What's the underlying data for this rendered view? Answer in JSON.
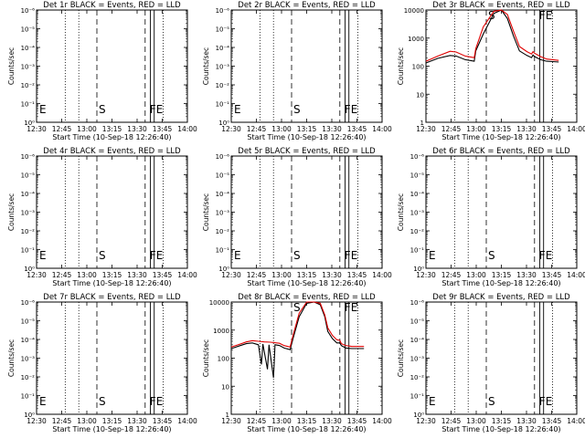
{
  "chart_data": [
    {
      "type": "line",
      "title": "Det 1r BLACK = Events, RED = LLD",
      "xlabel": "Start Time (10-Sep-18 12:26:40)",
      "ylabel": "Counts/sec",
      "yscale": "log",
      "ytick_labels": [
        "10⁰",
        "10⁻¹",
        "10⁻²",
        "10⁻³",
        "10⁻⁴",
        "10⁻⁵",
        "10⁻⁶"
      ],
      "xtick_labels": [
        "12:30",
        "12:45",
        "13:00",
        "13:15",
        "13:30",
        "13:45",
        "14:00"
      ],
      "markers": {
        "left": "E",
        "start": "S",
        "f": "F",
        "e": "E"
      },
      "series": []
    },
    {
      "type": "line",
      "title": "Det 2r BLACK = Events, RED = LLD",
      "xlabel": "Start Time (10-Sep-18 12:26:40)",
      "ylabel": "Counts/sec",
      "yscale": "log",
      "ytick_labels": [
        "10⁰",
        "10⁻¹",
        "10⁻²",
        "10⁻³",
        "10⁻⁴",
        "10⁻⁵",
        "10⁻⁶"
      ],
      "xtick_labels": [
        "12:30",
        "12:45",
        "13:00",
        "13:15",
        "13:30",
        "13:45",
        "14:00"
      ],
      "markers": {
        "left": "E",
        "start": "S",
        "f": "F",
        "e": "E"
      },
      "series": []
    },
    {
      "type": "line",
      "title": "Det 3r BLACK = Events, RED = LLD",
      "xlabel": "Start Time (10-Sep-18 12:26:40)",
      "ylabel": "Counts/sec",
      "yscale": "log",
      "ytick_labels": [
        "1",
        "10",
        "100",
        "1000",
        "10000"
      ],
      "xtick_labels": [
        "12:30",
        "12:45",
        "13:00",
        "13:15",
        "13:30",
        "13:45",
        "14:00"
      ],
      "markers": {
        "left": "",
        "start": "S",
        "f": "F",
        "e": "E"
      },
      "series": [
        {
          "color": "#000000",
          "points": [
            [
              0,
              130
            ],
            [
              8,
              190
            ],
            [
              16,
              240
            ],
            [
              20,
              230
            ],
            [
              26,
              170
            ],
            [
              32,
              150
            ],
            [
              33,
              350
            ],
            [
              38,
              1400
            ],
            [
              45,
              7500
            ],
            [
              50,
              10000
            ],
            [
              54,
              5000
            ],
            [
              58,
              1200
            ],
            [
              62,
              350
            ],
            [
              67,
              240
            ],
            [
              70,
              200
            ],
            [
              71,
              250
            ],
            [
              72,
              220
            ],
            [
              76,
              170
            ],
            [
              80,
              150
            ],
            [
              84,
              145
            ],
            [
              88,
              140
            ]
          ]
        },
        {
          "color": "#e00000",
          "points": [
            [
              0,
              150
            ],
            [
              8,
              230
            ],
            [
              16,
              340
            ],
            [
              20,
              320
            ],
            [
              26,
              230
            ],
            [
              32,
              200
            ],
            [
              33,
              420
            ],
            [
              38,
              2500
            ],
            [
              45,
              9000
            ],
            [
              50,
              12000
            ],
            [
              54,
              7000
            ],
            [
              58,
              1800
            ],
            [
              62,
              500
            ],
            [
              67,
              330
            ],
            [
              70,
              270
            ],
            [
              71,
              330
            ],
            [
              72,
              290
            ],
            [
              76,
              220
            ],
            [
              80,
              180
            ],
            [
              84,
              170
            ],
            [
              88,
              160
            ]
          ]
        }
      ]
    },
    {
      "type": "line",
      "title": "Det 4r BLACK = Events, RED = LLD",
      "xlabel": "Start Time (10-Sep-18 12:26:40)",
      "ylabel": "Counts/sec",
      "yscale": "log",
      "ytick_labels": [
        "10⁰",
        "10⁻¹",
        "10⁻²",
        "10⁻³",
        "10⁻⁴",
        "10⁻⁵",
        "10⁻⁶"
      ],
      "xtick_labels": [
        "12:30",
        "12:45",
        "13:00",
        "13:15",
        "13:30",
        "13:45",
        "14:00"
      ],
      "markers": {
        "left": "E",
        "start": "S",
        "f": "F",
        "e": "E"
      },
      "series": []
    },
    {
      "type": "line",
      "title": "Det 5r BLACK = Events, RED = LLD",
      "xlabel": "Start Time (10-Sep-18 12:26:40)",
      "ylabel": "Counts/sec",
      "yscale": "log",
      "ytick_labels": [
        "10⁰",
        "10⁻¹",
        "10⁻²",
        "10⁻³",
        "10⁻⁴",
        "10⁻⁵",
        "10⁻⁶"
      ],
      "xtick_labels": [
        "12:30",
        "12:45",
        "13:00",
        "13:15",
        "13:30",
        "13:45",
        "14:00"
      ],
      "markers": {
        "left": "E",
        "start": "S",
        "f": "F",
        "e": "E"
      },
      "series": []
    },
    {
      "type": "line",
      "title": "Det 6r BLACK = Events, RED = LLD",
      "xlabel": "Start Time (10-Sep-18 12:26:40)",
      "ylabel": "Counts/sec",
      "yscale": "log",
      "ytick_labels": [
        "10⁰",
        "10⁻¹",
        "10⁻²",
        "10⁻³",
        "10⁻⁴",
        "10⁻⁵",
        "10⁻⁶"
      ],
      "xtick_labels": [
        "12:30",
        "12:45",
        "13:00",
        "13:15",
        "13:30",
        "13:45",
        "14:00"
      ],
      "markers": {
        "left": "E",
        "start": "S",
        "f": "F",
        "e": "E"
      },
      "series": []
    },
    {
      "type": "line",
      "title": "Det 7r BLACK = Events, RED = LLD",
      "xlabel": "Start Time (10-Sep-18 12:26:40)",
      "ylabel": "Counts/sec",
      "yscale": "log",
      "ytick_labels": [
        "10⁰",
        "10⁻¹",
        "10⁻²",
        "10⁻³",
        "10⁻⁴",
        "10⁻⁵",
        "10⁻⁶"
      ],
      "xtick_labels": [
        "12:30",
        "12:45",
        "13:00",
        "13:15",
        "13:30",
        "13:45",
        "14:00"
      ],
      "markers": {
        "left": "E",
        "start": "S",
        "f": "F",
        "e": "E"
      },
      "series": []
    },
    {
      "type": "line",
      "title": "Det 8r BLACK = Events, RED = LLD",
      "xlabel": "Start Time (10-Sep-18 12:26:40)",
      "ylabel": "Counts/sec",
      "yscale": "log",
      "ytick_labels": [
        "1",
        "10",
        "100",
        "1000",
        "10000"
      ],
      "xtick_labels": [
        "12:30",
        "12:45",
        "13:00",
        "13:15",
        "13:30",
        "13:45",
        "14:00"
      ],
      "markers": {
        "left": "",
        "start": "S",
        "f": "F",
        "e": "E"
      },
      "series": [
        {
          "color": "#000000",
          "points": [
            [
              0,
              220
            ],
            [
              6,
              280
            ],
            [
              10,
              330
            ],
            [
              14,
              350
            ],
            [
              18,
              300
            ],
            [
              20,
              60
            ],
            [
              21,
              320
            ],
            [
              24,
              40
            ],
            [
              25,
              300
            ],
            [
              28,
              20
            ],
            [
              29,
              300
            ],
            [
              32,
              280
            ],
            [
              35,
              230
            ],
            [
              39,
              200
            ],
            [
              41,
              500
            ],
            [
              45,
              3000
            ],
            [
              50,
              9000
            ],
            [
              55,
              10000
            ],
            [
              59,
              8000
            ],
            [
              62,
              3000
            ],
            [
              64,
              900
            ],
            [
              67,
              500
            ],
            [
              70,
              350
            ],
            [
              72,
              350
            ],
            [
              73,
              280
            ],
            [
              76,
              230
            ],
            [
              80,
              220
            ],
            [
              88,
              220
            ]
          ]
        },
        {
          "color": "#e00000",
          "points": [
            [
              0,
              250
            ],
            [
              6,
              320
            ],
            [
              10,
              380
            ],
            [
              14,
              420
            ],
            [
              18,
              400
            ],
            [
              22,
              380
            ],
            [
              26,
              370
            ],
            [
              32,
              340
            ],
            [
              35,
              280
            ],
            [
              39,
              250
            ],
            [
              41,
              650
            ],
            [
              45,
              4000
            ],
            [
              50,
              11000
            ],
            [
              55,
              12000
            ],
            [
              59,
              9000
            ],
            [
              62,
              3500
            ],
            [
              64,
              1200
            ],
            [
              67,
              650
            ],
            [
              70,
              450
            ],
            [
              72,
              430
            ],
            [
              73,
              330
            ],
            [
              76,
              280
            ],
            [
              80,
              260
            ],
            [
              88,
              260
            ]
          ]
        }
      ]
    },
    {
      "type": "line",
      "title": "Det 9r BLACK = Events, RED = LLD",
      "xlabel": "Start Time (10-Sep-18 12:26:40)",
      "ylabel": "Counts/sec",
      "yscale": "log",
      "ytick_labels": [
        "10⁰",
        "10⁻¹",
        "10⁻²",
        "10⁻³",
        "10⁻⁴",
        "10⁻⁵",
        "10⁻⁶"
      ],
      "xtick_labels": [
        "12:30",
        "12:45",
        "13:00",
        "13:15",
        "13:30",
        "13:45",
        "14:00"
      ],
      "markers": {
        "left": "E",
        "start": "S",
        "f": "F",
        "e": "E"
      },
      "series": []
    }
  ]
}
